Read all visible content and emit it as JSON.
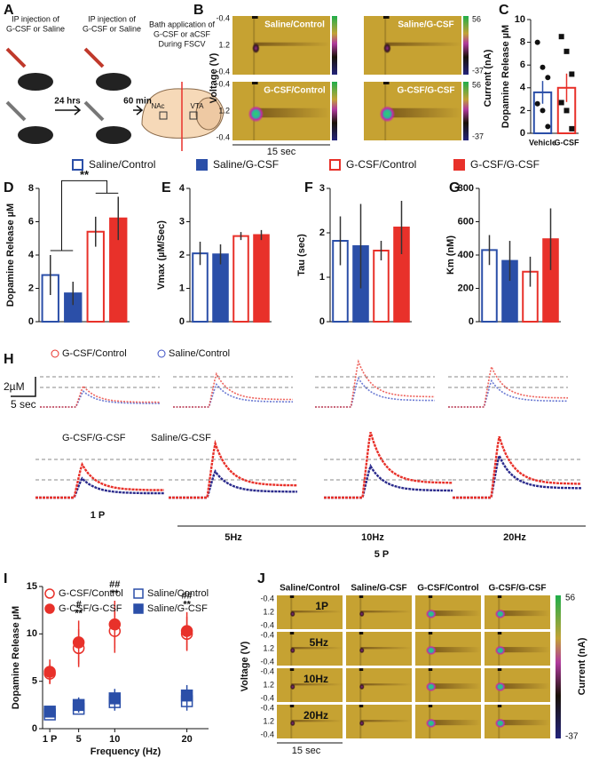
{
  "panel_labels": [
    "A",
    "B",
    "C",
    "D",
    "E",
    "F",
    "G",
    "H",
    "I",
    "J"
  ],
  "schematic": {
    "injection_1": [
      "IP injection of",
      "G-CSF or Saline"
    ],
    "injection_2": [
      "IP injection of",
      "G-CSF or Saline"
    ],
    "interval_1": "24 hrs",
    "interval_2": "60 min",
    "bath": [
      "Bath application of",
      "G-CSF or aCSF",
      "During FSCV"
    ],
    "nac": "NAc",
    "vta": "VTA"
  },
  "color_plots_B": {
    "titles": [
      "Saline/Control",
      "Saline/G-CSF",
      "G-CSF/Control",
      "G-CSF/G-CSF"
    ],
    "voltage_label": "Voltage (V)",
    "voltage_ticks": [
      "-0.4",
      "1.2",
      "-0.4"
    ],
    "current_label": "Current (nA)",
    "current_max": "56",
    "current_min": "-37",
    "time_scale": "15 sec"
  },
  "legend_D_G": [
    {
      "name": "Saline/Control",
      "color": "#2b4fa8",
      "filled": false
    },
    {
      "name": "Saline/G-CSF",
      "color": "#2b4fa8",
      "filled": true
    },
    {
      "name": "G-CSF/Control",
      "color": "#e8312a",
      "filled": false
    },
    {
      "name": "G-CSF/G-CSF",
      "color": "#e8312a",
      "filled": true
    }
  ],
  "traces_H": {
    "legend": [
      "G-CSF/Control",
      "Saline/Control"
    ],
    "legend2": [
      "G-CSF/G-CSF",
      "Saline/G-CSF"
    ],
    "scale_y": "2µM",
    "scale_x": "5 sec",
    "conditions": [
      "1 P",
      "5Hz",
      "10Hz",
      "20Hz"
    ],
    "group": "5 P"
  },
  "color_plots_J": {
    "columns": [
      "Saline/Control",
      "Saline/G-CSF",
      "G-CSF/Control",
      "G-CSF/G-CSF"
    ],
    "rows": [
      "1P",
      "5Hz",
      "10Hz",
      "20Hz"
    ],
    "voltage_label": "Voltage (V)",
    "voltage_ticks": [
      "-0.4",
      "1.2",
      "-0.4"
    ],
    "current_label": "Current (nA)",
    "current_max": "56",
    "current_min": "-37",
    "time_scale": "15 sec"
  },
  "chart_data": [
    {
      "type": "bar",
      "categories": [
        "Vehicle",
        "G-CSF"
      ],
      "values": [
        3.6,
        4.0
      ],
      "errors": [
        1.0,
        1.25
      ],
      "colors": [
        "#2b4fa8",
        "#e8312a"
      ],
      "points": [
        [
          8.0,
          5.8,
          4.9,
          2.6,
          2.0,
          0.6
        ],
        [
          8.5,
          7.2,
          5.2,
          2.7,
          2.0,
          0.4
        ]
      ],
      "point_markers": [
        "circle",
        "square"
      ],
      "ylabel": "Dopamine Release µM",
      "ylim": [
        0,
        10
      ],
      "yticks": [
        0,
        2,
        4,
        6,
        8,
        10
      ]
    },
    {
      "type": "bar",
      "values": [
        2.8,
        1.7,
        5.4,
        6.2
      ],
      "errors": [
        1.2,
        0.7,
        0.9,
        1.3
      ],
      "ylabel": "Dopamine Release µM",
      "ylim": [
        0,
        8
      ],
      "yticks": [
        0,
        2,
        4,
        6,
        8
      ],
      "annotation": "**"
    },
    {
      "type": "bar",
      "values": [
        2.05,
        2.02,
        2.57,
        2.6
      ],
      "errors": [
        0.35,
        0.3,
        0.12,
        0.15
      ],
      "ylabel": "Vmax (µM/Sec)",
      "ylim": [
        0,
        4
      ],
      "yticks": [
        0,
        1,
        2,
        3,
        4
      ]
    },
    {
      "type": "bar",
      "values": [
        1.82,
        1.7,
        1.6,
        2.12
      ],
      "errors": [
        0.55,
        0.95,
        0.22,
        0.6
      ],
      "ylabel": "Tau (sec)",
      "ylim": [
        0,
        3
      ],
      "yticks": [
        0,
        1,
        2,
        3
      ]
    },
    {
      "type": "bar",
      "values": [
        430,
        365,
        300,
        495
      ],
      "errors": [
        90,
        120,
        90,
        185
      ],
      "ylabel": "Km (nM)",
      "ylim": [
        0,
        800
      ],
      "yticks": [
        0,
        200,
        400,
        600,
        800
      ]
    },
    {
      "type": "errorbar",
      "x": [
        1,
        5,
        10,
        20
      ],
      "xticks": [
        {
          "value": 1,
          "label": "1 P"
        },
        5,
        10,
        20
      ],
      "xlim": [
        0,
        23
      ],
      "ylim": [
        0,
        15
      ],
      "yticks": [
        0,
        5,
        10,
        15
      ],
      "xlabel": "Frequency (Hz)",
      "ylabel": "Dopamine Release µM",
      "series": [
        {
          "name": "G-CSF/Control",
          "color": "#e8312a",
          "marker": "circle",
          "filled": false,
          "values": [
            5.8,
            8.5,
            10.3,
            10.0
          ],
          "errors": [
            1.0,
            2.0,
            2.3,
            1.8
          ]
        },
        {
          "name": "Saline/Control",
          "color": "#2b4fa8",
          "marker": "square",
          "filled": false,
          "values": [
            1.5,
            2.1,
            2.8,
            2.9
          ],
          "errors": [
            0.5,
            0.6,
            0.9,
            1.0
          ]
        },
        {
          "name": "G-CSF/G-CSF",
          "color": "#e8312a",
          "marker": "circle",
          "filled": true,
          "values": [
            6.0,
            9.1,
            11.0,
            10.3
          ],
          "errors": [
            1.3,
            2.3,
            2.5,
            2.0
          ]
        },
        {
          "name": "Saline/G-CSF",
          "color": "#2b4fa8",
          "marker": "square",
          "filled": true,
          "values": [
            1.8,
            2.5,
            3.2,
            3.5
          ],
          "errors": [
            0.6,
            0.8,
            1.0,
            1.1
          ]
        }
      ],
      "annotations": [
        null,
        [
          "#",
          "**"
        ],
        [
          "##",
          "**"
        ],
        [
          "##",
          "**"
        ]
      ]
    }
  ]
}
